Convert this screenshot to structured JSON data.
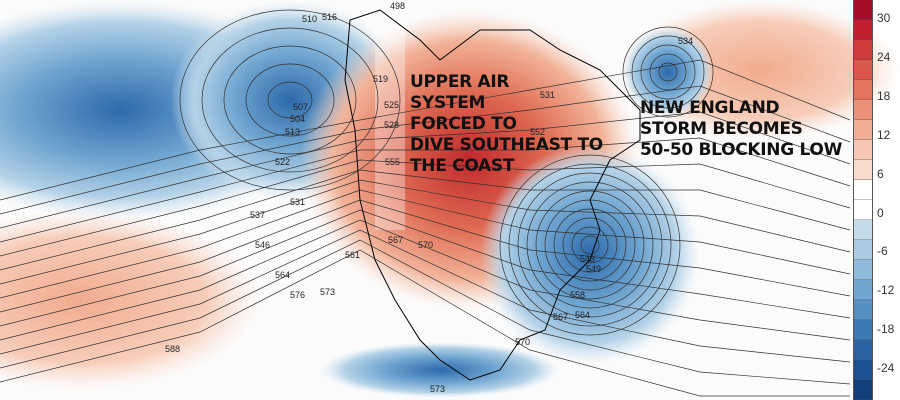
{
  "map": {
    "annotations": {
      "upper_air": [
        "UPPER AIR",
        "SYSTEM",
        "FORCED TO",
        "DIVE SOUTHEAST TO",
        "THE COAST"
      ],
      "new_england": [
        "NEW ENGLAND",
        "STORM BECOMES",
        "50-50 BLOCKING LOW"
      ]
    },
    "contour_labels": [
      "510",
      "498",
      "516",
      "507",
      "504",
      "513",
      "522",
      "531",
      "537",
      "546",
      "564",
      "576",
      "588",
      "573",
      "519",
      "525",
      "528",
      "531",
      "534",
      "552",
      "555",
      "561",
      "567",
      "570",
      "543",
      "549",
      "558",
      "564",
      "567",
      "570",
      "573"
    ],
    "colorbar": {
      "ticks": [
        "30",
        "24",
        "18",
        "12",
        "6",
        "0",
        "-6",
        "-12",
        "-18",
        "-24"
      ],
      "colors": [
        "#a50f2b",
        "#c02030",
        "#cf3a3a",
        "#d9574a",
        "#e3735d",
        "#eb9177",
        "#f2ae95",
        "#f6c7b2",
        "#f9dccd",
        "#ffffff",
        "#ffffff",
        "#c6dcea",
        "#aacbe2",
        "#8fbadb",
        "#72a6d0",
        "#5590c2",
        "#3b79b3",
        "#2a63a2",
        "#1c4f90",
        "#123f7c"
      ]
    }
  }
}
